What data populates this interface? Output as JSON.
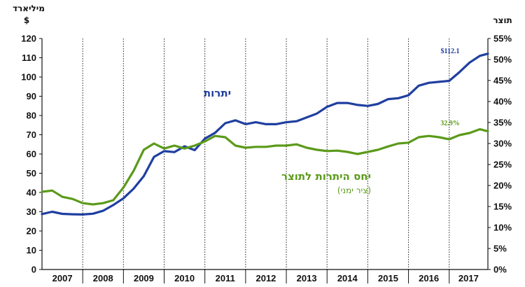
{
  "chart_data": {
    "type": "line",
    "title": "",
    "left_axis": {
      "label_lines": [
        "מיליארד",
        "$"
      ],
      "ticks": [
        "0",
        "10",
        "20",
        "30",
        "40",
        "50",
        "60",
        "70",
        "80",
        "90",
        "100",
        "110",
        "120"
      ],
      "ylim": [
        0,
        120
      ]
    },
    "right_axis": {
      "label": "תוצר",
      "ticks": [
        "0%",
        "5%",
        "10%",
        "15%",
        "20%",
        "25%",
        "30%",
        "35%",
        "40%",
        "45%",
        "50%",
        "55%"
      ],
      "ylim": [
        0,
        55
      ]
    },
    "x_ticks": [
      "2007",
      "2008",
      "2009",
      "2010",
      "2011",
      "2012",
      "2013",
      "2014",
      "2015",
      "2016",
      "2017"
    ],
    "xlim": [
      2007.0,
      2017.95
    ],
    "grid": "vertical dotted lines at year boundaries",
    "series": [
      {
        "name": "יתרות",
        "axis": "left",
        "color": "#1f3fa0",
        "end_label": "$112.1",
        "x": [
          2007.0,
          2007.25,
          2007.5,
          2007.75,
          2008.0,
          2008.25,
          2008.5,
          2008.75,
          2009.0,
          2009.25,
          2009.5,
          2009.75,
          2010.0,
          2010.25,
          2010.5,
          2010.75,
          2011.0,
          2011.25,
          2011.5,
          2011.75,
          2012.0,
          2012.25,
          2012.5,
          2012.75,
          2013.0,
          2013.25,
          2013.5,
          2013.75,
          2014.0,
          2014.25,
          2014.5,
          2014.75,
          2015.0,
          2015.25,
          2015.5,
          2015.75,
          2016.0,
          2016.25,
          2016.5,
          2016.75,
          2017.0,
          2017.25,
          2017.5,
          2017.75,
          2017.95
        ],
        "values": [
          28.8,
          30.0,
          28.9,
          28.7,
          28.6,
          29.0,
          30.5,
          33.5,
          37.0,
          42.0,
          48.5,
          58.5,
          61.5,
          61.0,
          64.0,
          62.0,
          68.0,
          71.0,
          76.0,
          77.5,
          75.5,
          76.5,
          75.5,
          75.5,
          76.5,
          77.0,
          79.0,
          81.0,
          84.5,
          86.5,
          86.5,
          85.5,
          85.0,
          86.0,
          88.5,
          89.0,
          90.5,
          95.5,
          97.0,
          97.5,
          98.0,
          102.5,
          107.5,
          111.0,
          112.1
        ]
      },
      {
        "name": "יחס היתרות לתוצר",
        "sub_label": "(ציר ימני)",
        "axis": "right",
        "color": "#5b9a1a",
        "end_label": "32.9%",
        "x": [
          2007.0,
          2007.25,
          2007.5,
          2007.75,
          2008.0,
          2008.25,
          2008.5,
          2008.75,
          2009.0,
          2009.25,
          2009.5,
          2009.75,
          2010.0,
          2010.25,
          2010.5,
          2010.75,
          2011.0,
          2011.25,
          2011.5,
          2011.75,
          2012.0,
          2012.25,
          2012.5,
          2012.75,
          2013.0,
          2013.25,
          2013.5,
          2013.75,
          2014.0,
          2014.25,
          2014.5,
          2014.75,
          2015.0,
          2015.25,
          2015.5,
          2015.75,
          2016.0,
          2016.25,
          2016.5,
          2016.75,
          2017.0,
          2017.25,
          2017.5,
          2017.75,
          2017.95
        ],
        "values": [
          18.5,
          18.8,
          17.3,
          16.8,
          15.8,
          15.5,
          15.8,
          16.5,
          19.5,
          23.5,
          28.5,
          30.0,
          28.8,
          29.5,
          28.8,
          29.5,
          30.5,
          31.8,
          31.5,
          29.5,
          29.0,
          29.2,
          29.2,
          29.5,
          29.5,
          29.8,
          29.0,
          28.5,
          28.2,
          28.3,
          28.0,
          27.5,
          28.0,
          28.5,
          29.3,
          30.0,
          30.2,
          31.5,
          31.8,
          31.5,
          31.0,
          32.0,
          32.5,
          33.4,
          32.9
        ]
      }
    ]
  }
}
